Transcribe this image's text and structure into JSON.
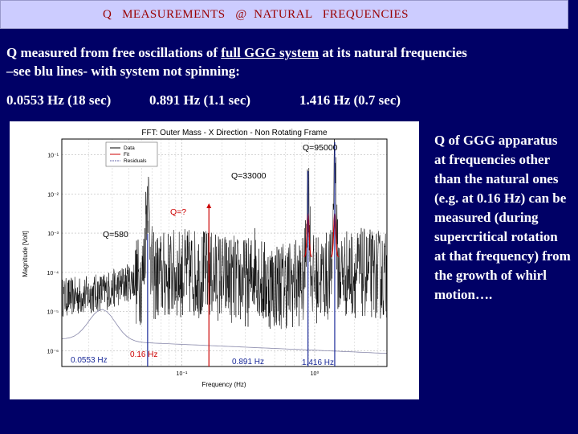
{
  "slide": {
    "title": "Q   MEASUREMENTS   @  NATURAL   FREQUENCIES",
    "para_pre": "Q measured from free oscillations of  ",
    "para_link": "full GGG system",
    "para_post": " at its natural frequencies",
    "para_line2_a": "–see blu lines-",
    "para_line2_b": "  with system not spinning:",
    "freq1": "0.0553 Hz (18 sec)",
    "freq2": "0.891 Hz (1.1 sec)",
    "freq3": "1.416 Hz (0.7 sec)",
    "side_text": "Q of GGG apparatus at frequencies other than the natural ones (e.g. at 0.16 Hz) can be measured (during supercritical rotation at that frequency) from the growth of whirl motion…."
  },
  "chart_data": {
    "type": "line",
    "title": "FFT: Outer Mass - X Direction - Non Rotating Frame",
    "xlabel": "Frequency (Hz)",
    "ylabel": "Magnitude [Volt]",
    "x_scale": "log",
    "y_scale": "log",
    "grid": true,
    "legend": {
      "placement": "top-left",
      "entries": [
        "Data",
        "Fit",
        "Residuals"
      ]
    },
    "x_ticks": [
      "10⁻¹",
      "10⁰"
    ],
    "y_ticks": [
      "10⁻¹",
      "10⁻²",
      "10⁻³",
      "10⁻⁴",
      "10⁻⁵",
      "10⁻⁶"
    ],
    "annotations": [
      {
        "text": "Q=95000"
      },
      {
        "text": "Q=33000"
      },
      {
        "text": "Q=?"
      },
      {
        "text": "Q=580"
      },
      {
        "text": "0.0553 Hz"
      },
      {
        "text": "0.16 Hz"
      },
      {
        "text": "0.891 Hz"
      },
      {
        "text": "1.416 Hz"
      }
    ],
    "marker_lines_hz": [
      0.0553,
      0.16,
      0.891,
      1.416
    ],
    "colors": {
      "data": "#000000",
      "fit": "#cc0000",
      "natural": "#1a2a99",
      "other": "#cc0000"
    }
  }
}
